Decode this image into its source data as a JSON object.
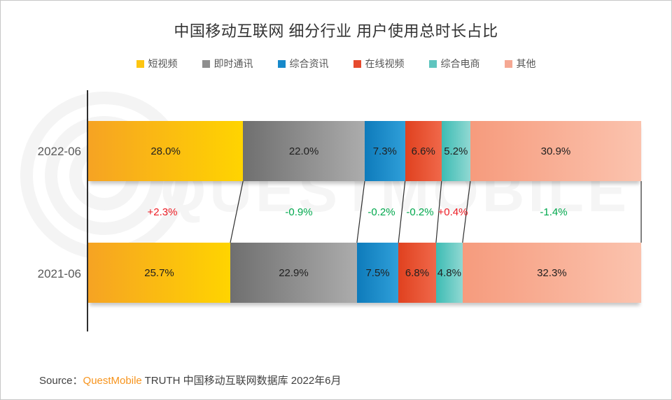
{
  "title": "中国移动互联网 细分行业 用户使用总时长占比",
  "watermark": "QUESTMOBILE",
  "chart_data": {
    "type": "bar",
    "subtype": "horizontal-stacked-percentage-comparison",
    "categories": [
      "2022-06",
      "2021-06"
    ],
    "series": [
      {
        "name": "短视频",
        "values": [
          28.0,
          25.7
        ],
        "displays": [
          "28.0%",
          "25.7%"
        ],
        "legend_color": "#FDC511",
        "gradient": [
          "#F6A323",
          "#FFD400"
        ]
      },
      {
        "name": "即时通讯",
        "values": [
          22.0,
          22.9
        ],
        "displays": [
          "22.0%",
          "22.9%"
        ],
        "legend_color": "#8E8E8E",
        "gradient": [
          "#6F6F6F",
          "#ACACAC"
        ]
      },
      {
        "name": "综合资讯",
        "values": [
          7.3,
          7.5
        ],
        "displays": [
          "7.3%",
          "7.5%"
        ],
        "legend_color": "#1789CA",
        "gradient": [
          "#0E7BBB",
          "#2F9FD9"
        ]
      },
      {
        "name": "在线视频",
        "values": [
          6.6,
          6.8
        ],
        "displays": [
          "6.6%",
          "6.8%"
        ],
        "legend_color": "#E64A2E",
        "gradient": [
          "#E0411F",
          "#F0684A"
        ]
      },
      {
        "name": "综合电商",
        "values": [
          5.2,
          4.8
        ],
        "displays": [
          "5.2%",
          "4.8%"
        ],
        "legend_color": "#5FC5BF",
        "gradient": [
          "#3DBCB4",
          "#90D8D2"
        ]
      },
      {
        "name": "其他",
        "values": [
          30.9,
          32.3
        ],
        "displays": [
          "30.9%",
          "32.3%"
        ],
        "legend_color": "#F5A893",
        "gradient": [
          "#F69B7D",
          "#FBC3AE"
        ]
      }
    ],
    "changes": [
      {
        "display": "+2.3%",
        "color": "#ED1C24"
      },
      {
        "display": "-0.9%",
        "color": "#00A84D"
      },
      {
        "display": "-0.2%",
        "color": "#00A84D"
      },
      {
        "display": "-0.2%",
        "color": "#00A84D"
      },
      {
        "display": "+0.4%",
        "color": "#ED1C24"
      },
      {
        "display": "-1.4%",
        "color": "#00A84D"
      }
    ],
    "unit": "%",
    "xlim": [
      0,
      100
    ],
    "legend_position": "top",
    "grid": false
  },
  "source": {
    "prefix": "Source：",
    "brand": "QuestMobile",
    "rest": " TRUTH 中国移动互联网数据库 2022年6月"
  }
}
